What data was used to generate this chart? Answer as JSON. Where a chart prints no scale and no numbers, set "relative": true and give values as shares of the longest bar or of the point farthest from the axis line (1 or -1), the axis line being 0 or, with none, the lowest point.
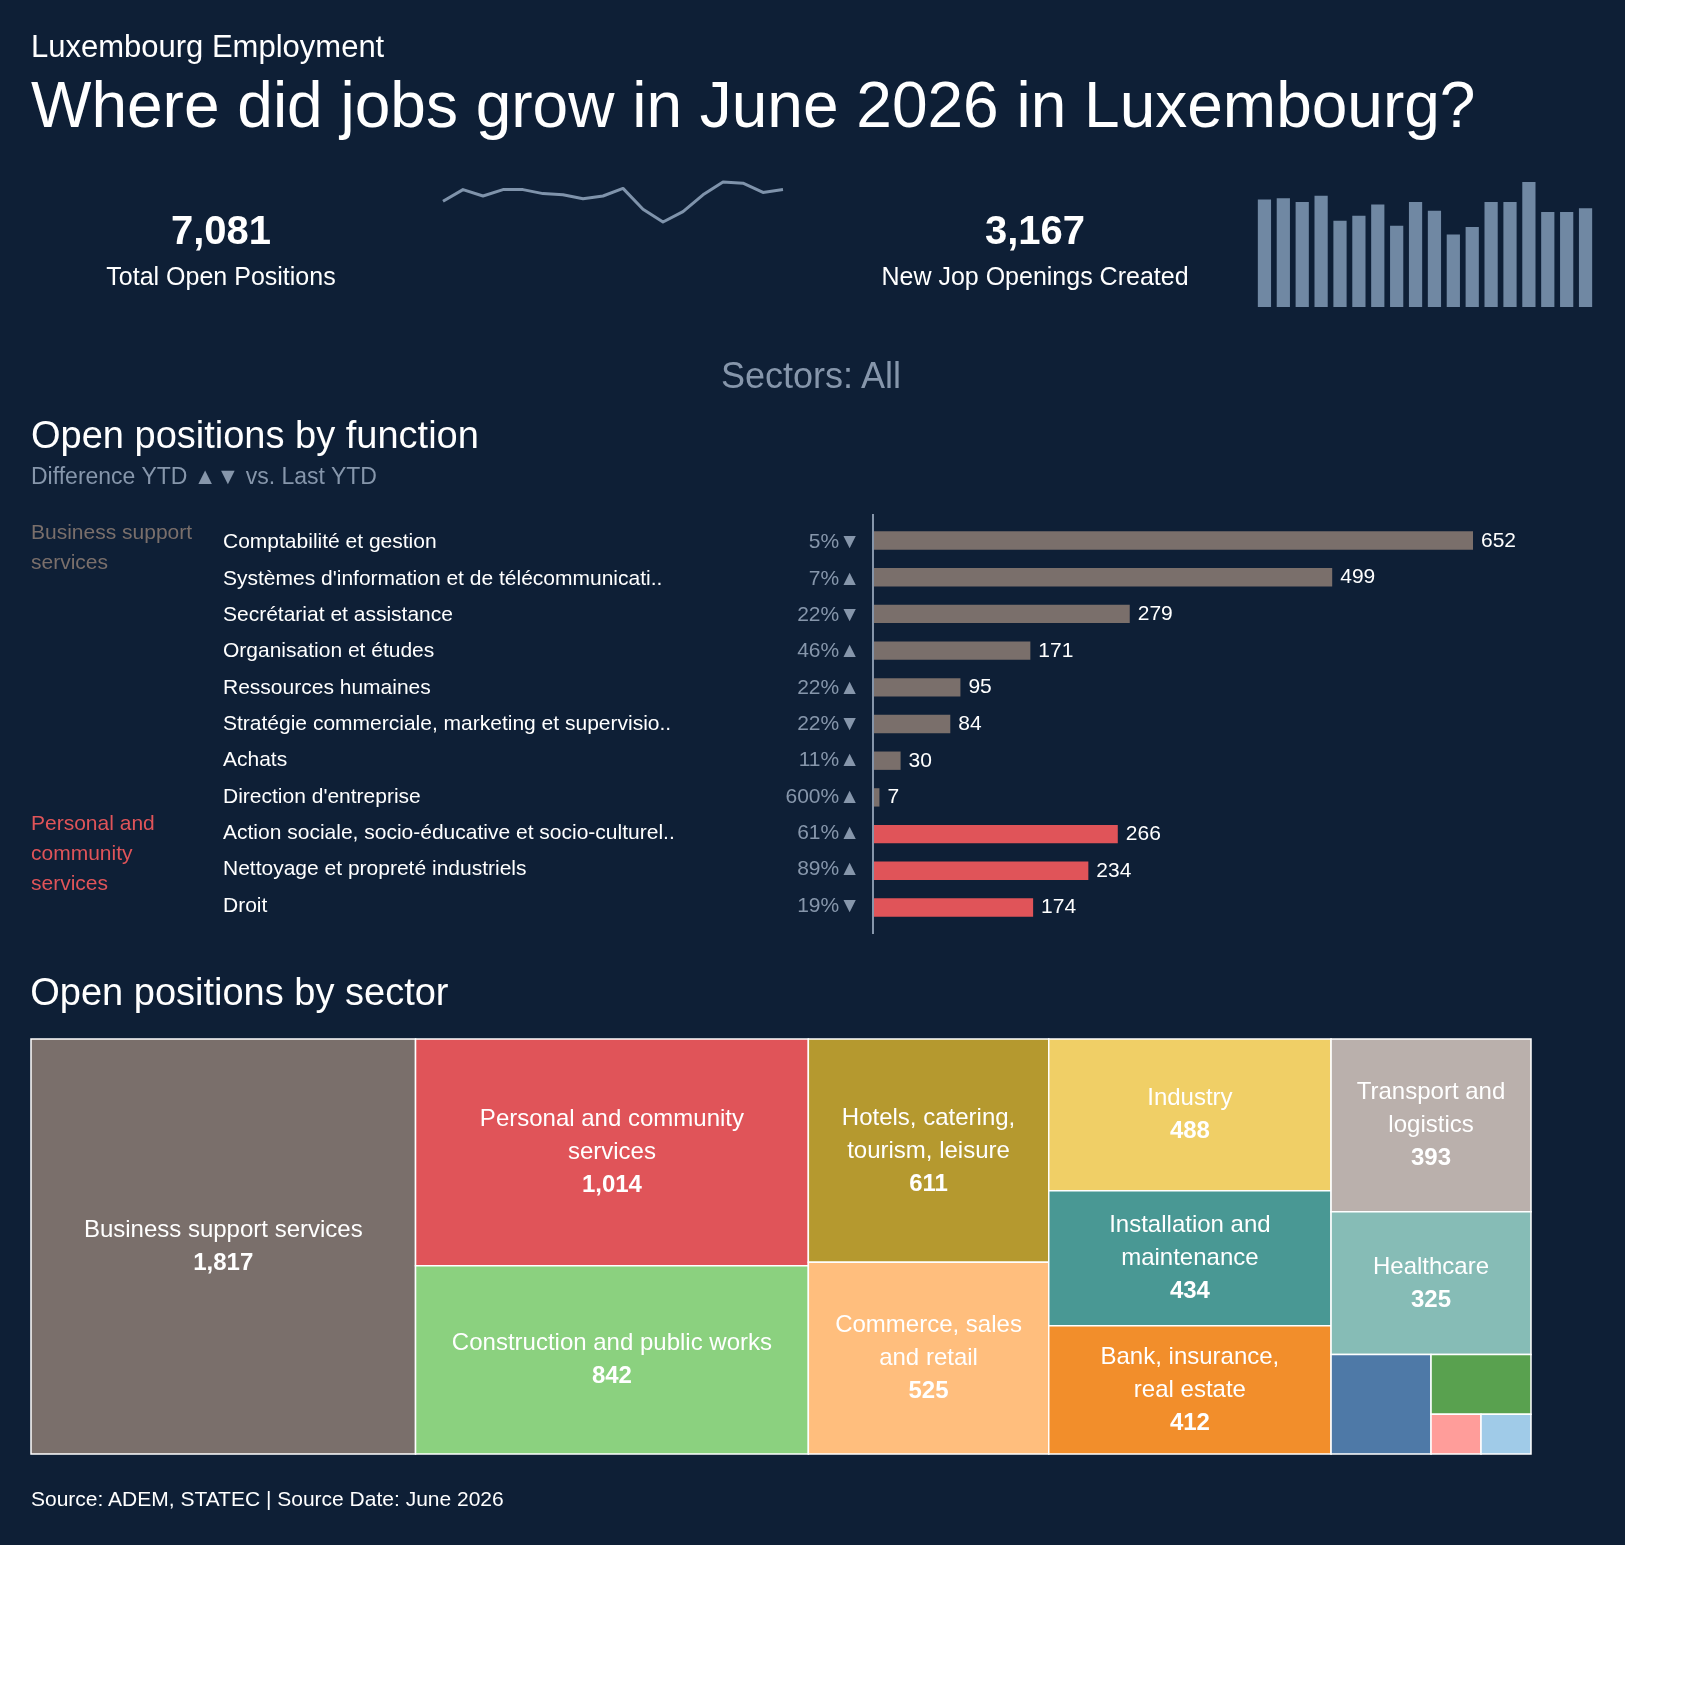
{
  "chart_data": [
    {
      "type": "line",
      "title": "Where did jobs grow in June 2026 in Luxembourg?",
      "subtitle": "Luxembourg Employment",
      "annotations": [
        "7,081",
        "Total Open Positions"
      ],
      "relative": true,
      "categories": [
        null,
        null,
        null,
        null,
        null,
        null,
        null,
        null,
        null,
        null,
        null,
        null,
        null,
        null,
        null,
        null,
        null,
        null
      ],
      "series": [
        {
          "color": "#7f93ab",
          "values": [
            0.52,
            0.81,
            0.65,
            0.81,
            0.81,
            0.71,
            0.68,
            0.58,
            0.65,
            0.84,
            0.32,
            0,
            0.26,
            0.68,
            1,
            0.97,
            0.74,
            0.81
          ]
        }
      ]
    },
    {
      "type": "bar",
      "annotations": [
        "3,167",
        "New Jop Openings Created"
      ],
      "relative": true,
      "categories": [
        null,
        null,
        null,
        null,
        null,
        null,
        null,
        null,
        null,
        null,
        null,
        null,
        null,
        null,
        null,
        null,
        null,
        null
      ],
      "series": [
        {
          "color": "#7088a3",
          "values": [
            0.86,
            0.87,
            0.84,
            0.89,
            0.69,
            0.73,
            0.82,
            0.65,
            0.84,
            0.77,
            0.58,
            0.64,
            0.84,
            0.84,
            1,
            0.76,
            0.76,
            0.79
          ]
        }
      ]
    },
    {
      "type": "bar",
      "orientation": "horizontal",
      "title": "Open positions by function",
      "subtitle": "Difference YTD ▲▼ vs. Last YTD",
      "data_labels": true,
      "legend": "left",
      "categories": [
        "Comptabilité et gestion",
        "Systèmes d'information et de télécommunicati..",
        "Secrétariat et assistance",
        "Organisation et études",
        "Ressources humaines",
        "Stratégie commerciale, marketing et supervisio..",
        "Achats",
        "Direction d'entreprise",
        "Action sociale, socio-éducative et socio-culturel..",
        "Nettoyage et propreté industriels",
        "Droit"
      ],
      "series": [
        {
          "name": "Business support services",
          "color": "#7a6f6b",
          "values": [
            652,
            499,
            279,
            171,
            95,
            84,
            30,
            7,
            null,
            null,
            null
          ]
        },
        {
          "name": "Personal and community services",
          "color": "#e05459",
          "values": [
            null,
            null,
            null,
            null,
            null,
            null,
            null,
            null,
            266,
            234,
            174
          ]
        }
      ],
      "annotations": [
        "Sectors: All",
        "5%▼",
        "7%▲",
        "22%▼",
        "46%▲",
        "22%▲",
        "22%▼",
        "11%▲",
        "600%▲",
        "61%▲",
        "89%▲",
        "19%▼"
      ]
    },
    {
      "type": "other",
      "title": "Open positions by sector",
      "value_labels": [
        "1,817",
        "1,014",
        "842",
        "611",
        "525",
        "488",
        "434",
        "412",
        "393",
        "325",
        null,
        null,
        null,
        null
      ],
      "categories": [
        "Business support services",
        "Personal and community services",
        "Construction and public works",
        "Hotels, catering, tourism, leisure",
        "Commerce, sales and retail",
        "Industry",
        "Installation and maintenance",
        "Bank, insurance, real estate",
        "Transport and logistics",
        "Healthcare",
        null,
        null,
        null,
        null
      ],
      "values": [
        1817,
        1014,
        842,
        611,
        525,
        488,
        434,
        412,
        393,
        325,
        null,
        null,
        null,
        null
      ],
      "colors": [
        "#7a6f6b",
        "#e05459",
        "#8bd17f",
        "#b5992f",
        "#ffbe7d",
        "#f0cf66",
        "#499894",
        "#f28e2b",
        "#bab0ac",
        "#86bcb6",
        "#4e79a7",
        "#59a14f",
        "#ff9d9a",
        "#a0cbe8"
      ],
      "annotations": [
        "Source: ADEM, STATEC | Source Date: June 2026"
      ]
    }
  ]
}
